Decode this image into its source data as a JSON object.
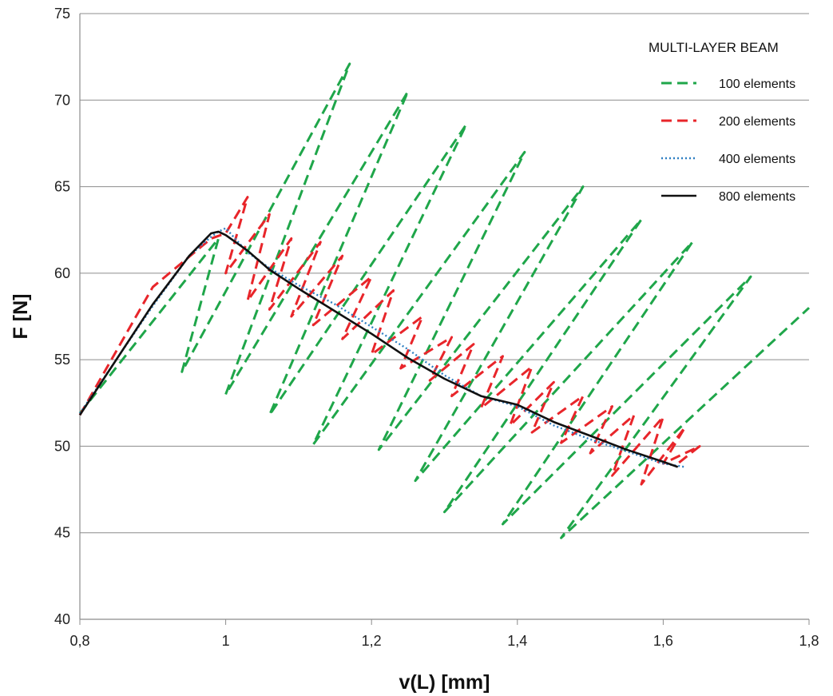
{
  "chart_data": {
    "type": "line",
    "title": "",
    "xlabel": "v(L) [mm]",
    "ylabel": "F [N]",
    "xlim": [
      0.8,
      1.8
    ],
    "ylim": [
      40,
      75
    ],
    "x_ticks": [
      "0,8",
      "1",
      "1,2",
      "1,4",
      "1,6",
      "1,8"
    ],
    "y_ticks": [
      "40",
      "45",
      "50",
      "55",
      "60",
      "65",
      "70",
      "75"
    ],
    "grid": "horizontal",
    "legend": {
      "title": "MULTI-LAYER BEAM",
      "placement": "top-right"
    },
    "series": [
      {
        "name": "100 elements",
        "color": "#1fa64a",
        "dash": "dashed",
        "x": [
          0.8,
          0.99,
          0.94,
          1.17,
          1.0,
          1.25,
          1.06,
          1.33,
          1.12,
          1.41,
          1.21,
          1.49,
          1.26,
          1.57,
          1.3,
          1.64,
          1.38,
          1.72,
          1.46,
          1.8
        ],
        "y": [
          51.9,
          62.0,
          54.3,
          72.1,
          53.0,
          70.5,
          51.8,
          68.6,
          50.1,
          67.0,
          49.8,
          65.0,
          48.0,
          63.1,
          46.2,
          61.8,
          45.5,
          59.8,
          44.7,
          58.0
        ]
      },
      {
        "name": "200 elements",
        "color": "#e8252a",
        "dash": "dashed",
        "x": [
          0.8,
          0.9,
          0.98,
          1.0,
          1.03,
          1.0,
          1.06,
          1.03,
          1.09,
          1.06,
          1.13,
          1.09,
          1.16,
          1.12,
          1.2,
          1.16,
          1.23,
          1.2,
          1.27,
          1.24,
          1.31,
          1.28,
          1.34,
          1.31,
          1.38,
          1.35,
          1.42,
          1.39,
          1.45,
          1.42,
          1.49,
          1.46,
          1.53,
          1.5,
          1.56,
          1.53,
          1.6,
          1.57,
          1.63,
          1.6,
          1.65,
          1.62
        ],
        "y": [
          51.8,
          59.2,
          62.0,
          62.3,
          64.4,
          60.0,
          63.4,
          58.4,
          62.0,
          57.9,
          61.8,
          57.5,
          61.0,
          57.0,
          59.8,
          56.2,
          59.0,
          55.3,
          57.5,
          54.5,
          56.3,
          53.8,
          55.9,
          52.9,
          55.2,
          52.2,
          54.6,
          51.2,
          53.7,
          50.8,
          52.9,
          50.2,
          52.3,
          49.6,
          51.8,
          48.3,
          51.7,
          47.8,
          51.1,
          49.0,
          50.0,
          49.0
        ]
      },
      {
        "name": "400 elements",
        "color": "#2e7fc2",
        "dash": "dotted",
        "x": [
          0.8,
          0.85,
          0.9,
          0.95,
          0.98,
          0.99,
          1.0,
          1.03,
          1.06,
          1.1,
          1.15,
          1.2,
          1.25,
          1.3,
          1.35,
          1.4,
          1.45,
          1.5,
          1.55,
          1.6,
          1.63
        ],
        "y": [
          51.9,
          55.0,
          58.1,
          61.0,
          62.1,
          62.4,
          62.6,
          61.2,
          60.3,
          59.3,
          58.2,
          56.9,
          55.6,
          54.1,
          52.9,
          52.3,
          51.2,
          50.4,
          49.7,
          49.0,
          48.8
        ]
      },
      {
        "name": "800 elements",
        "color": "#111111",
        "dash": "solid",
        "x": [
          0.8,
          0.85,
          0.9,
          0.95,
          0.98,
          0.99,
          1.0,
          1.03,
          1.06,
          1.1,
          1.15,
          1.2,
          1.25,
          1.3,
          1.35,
          1.4,
          1.45,
          1.5,
          1.55,
          1.6,
          1.62
        ],
        "y": [
          51.8,
          55.0,
          58.2,
          61.0,
          62.3,
          62.4,
          62.2,
          61.3,
          60.2,
          59.1,
          57.8,
          56.5,
          55.1,
          53.9,
          52.9,
          52.4,
          51.4,
          50.6,
          49.8,
          49.1,
          48.8
        ]
      }
    ]
  }
}
